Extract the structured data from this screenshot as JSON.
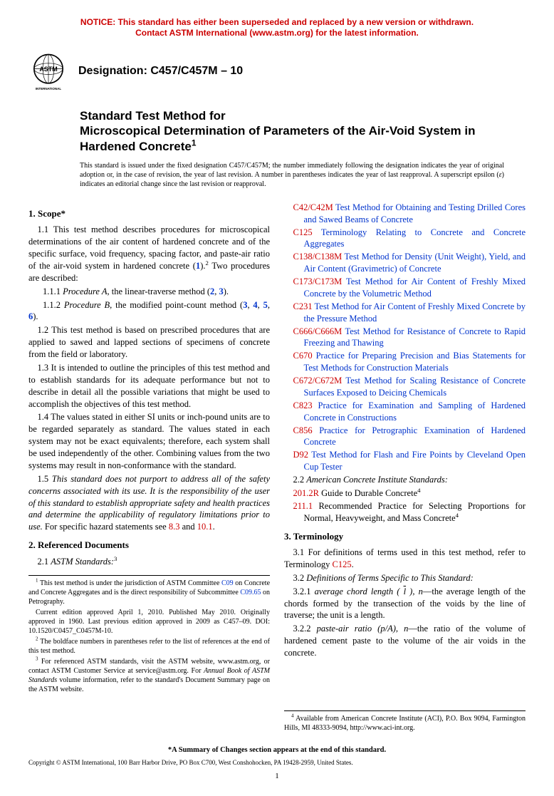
{
  "colors": {
    "notice_red": "#cc0000",
    "ref_red": "#cc0000",
    "link_blue": "#0033cc",
    "text_black": "#000000",
    "bg": "#ffffff"
  },
  "notice": {
    "line1": "NOTICE: This standard has either been superseded and replaced by a new version or withdrawn.",
    "line2": "Contact ASTM International (www.astm.org) for the latest information."
  },
  "logo_label": "ASTM INTERNATIONAL",
  "designation_prefix": "Designation: ",
  "designation_code": "C457/C457M – 10",
  "title": {
    "pre": "Standard Test Method for",
    "main": "Microscopical Determination of Parameters of the Air-Void System in Hardened Concrete",
    "sup": "1"
  },
  "issue_note": {
    "l1": "This standard is issued under the fixed designation C457/C457M; the number immediately following the designation indicates the year of original adoption or, in the case of revision, the year of last revision. A number in parentheses indicates the year of last reapproval. A superscript epsilon (",
    "eps": "ε",
    "l2": ") indicates an editorial change since the last revision or reapproval."
  },
  "sections": {
    "scope": "1. Scope*",
    "refdocs": "2. Referenced Documents",
    "terminology": "3. Terminology"
  },
  "left": {
    "p11a": "1.1 This test method describes procedures for microscopical determinations of the air content of hardened concrete and of the specific surface, void frequency, spacing factor, and paste-air ratio of the air-void system in hardened concrete (",
    "p11_ref1": "1",
    "p11b": ").",
    "p11_sup": "2",
    "p11c": " Two procedures are described:",
    "p111a": "1.1.1 ",
    "p111_it": "Procedure A,",
    "p111b": " the linear-traverse method (",
    "p111_r1": "2",
    "p111_c": ", ",
    "p111_r2": "3",
    "p111_end": ").",
    "p112a": "1.1.2 ",
    "p112_it": "Procedure B,",
    "p112b": " the modified point-count method (",
    "p112_r1": "3",
    "p112_c1": ", ",
    "p112_r2": "4",
    "p112_c2": ", ",
    "p112_r3": "5",
    "p112_c3": ", ",
    "p112_r4": "6",
    "p112_end": ").",
    "p12": "1.2 This test method is based on prescribed procedures that are applied to sawed and lapped sections of specimens of concrete from the field or laboratory.",
    "p13": "1.3 It is intended to outline the principles of this test method and to establish standards for its adequate performance but not to describe in detail all the possible variations that might be used to accomplish the objectives of this test method.",
    "p14": "1.4 The values stated in either SI units or inch-pound units are to be regarded separately as standard. The values stated in each system may not be exact equivalents; therefore, each system shall be used independently of the other. Combining values from the two systems may result in non-conformance with the standard.",
    "p15a": "1.5 ",
    "p15_it": "This standard does not purport to address all of the safety concerns associated with its use. It is the responsibility of the user of this standard to establish appropriate safety and health practices and determine the applicability of regulatory limitations prior to use.",
    "p15b": " For specific hazard statements see ",
    "p15_r1": "8.3",
    "p15c": " and ",
    "p15_r2": "10.1",
    "p15d": ".",
    "p21a": "2.1 ",
    "p21_it": "ASTM Standards:",
    "p21_sup": "3"
  },
  "fn_left": {
    "f1a": "1",
    "f1b": " This test method is under the jurisdiction of ASTM Committee ",
    "f1_l1": "C09",
    "f1c": " on Concrete and Concrete Aggregates and is the direct responsibility of Subcommittee ",
    "f1_l2": "C09.65",
    "f1d": " on Petrography.",
    "f1e": "Current edition approved April 1, 2010. Published May 2010. Originally approved in 1960. Last previous edition approved in 2009 as C457–09. DOI: 10.1520/C0457_C0457M-10.",
    "f2a": "2",
    "f2b": " The boldface numbers in parentheses refer to the list of references at the end of this test method.",
    "f3a": "3",
    "f3b": " For referenced ASTM standards, visit the ASTM website, www.astm.org, or contact ASTM Customer Service at service@astm.org. For ",
    "f3_it": "Annual Book of ASTM Standards",
    "f3c": " volume information, refer to the standard's Document Summary page on the ASTM website."
  },
  "astm_refs": [
    {
      "code": "C42/C42M",
      "title": "Test Method for Obtaining and Testing Drilled Cores and Sawed Beams of Concrete"
    },
    {
      "code": "C125",
      "title": "Terminology Relating to Concrete and Concrete Aggregates"
    },
    {
      "code": "C138/C138M",
      "title": "Test Method for Density (Unit Weight), Yield, and Air Content (Gravimetric) of Concrete"
    },
    {
      "code": "C173/C173M",
      "title": "Test Method for Air Content of Freshly Mixed Concrete by the Volumetric Method"
    },
    {
      "code": "C231",
      "title": "Test Method for Air Content of Freshly Mixed Concrete by the Pressure Method"
    },
    {
      "code": "C666/C666M",
      "title": "Test Method for Resistance of Concrete to Rapid Freezing and Thawing"
    },
    {
      "code": "C670",
      "title": "Practice for Preparing Precision and Bias Statements for Test Methods for Construction Materials"
    },
    {
      "code": "C672/C672M",
      "title": "Test Method for Scaling Resistance of Concrete Surfaces Exposed to Deicing Chemicals"
    },
    {
      "code": "C823",
      "title": "Practice for Examination and Sampling of Hardened Concrete in Constructions"
    },
    {
      "code": "C856",
      "title": "Practice for Petrographic Examination of Hardened Concrete"
    },
    {
      "code": "D92",
      "title": "Test Method for Flash and Fire Points by Cleveland Open Cup Tester"
    }
  ],
  "right": {
    "p22a": "2.2 ",
    "p22_it": "American Concrete Institute Standards:",
    "aci1_code": "201.2R",
    "aci1_title": " Guide to Durable Concrete",
    "aci1_sup": "4",
    "aci2_code": "211.1",
    "aci2_title": " Recommended Practice for Selecting Proportions for Normal, Heavyweight, and Mass Concrete",
    "aci2_sup": "4",
    "p31a": "3.1 For definitions of terms used in this test method, refer to Terminology ",
    "p31_link": "C125",
    "p31b": ".",
    "p32a": "3.2 ",
    "p32_it": "Definitions of Terms Specific to This Standard:",
    "p321a": "3.2.1 ",
    "p321_it": "average chord length ( ",
    "p321_sym": "l",
    "p321_it2": " ), n",
    "p321b": "—the average length of the chords formed by the transection of the voids by the line of traverse; the unit is a length.",
    "p322a": "3.2.2 ",
    "p322_it": "paste-air ratio (p/A), n",
    "p322b": "—the ratio of the volume of hardened cement paste to the volume of the air voids in the concrete."
  },
  "fn_right": {
    "f4a": "4",
    "f4b": " Available from American Concrete Institute (ACI), P.O. Box 9094, Farmington Hills, MI 48333-9094, http://www.aci-int.org."
  },
  "footer": {
    "summary": "*A Summary of Changes section appears at the end of this standard.",
    "copyright": "Copyright © ASTM International, 100 Barr Harbor Drive, PO Box C700, West Conshohocken, PA 19428-2959, United States.",
    "page": "1"
  }
}
